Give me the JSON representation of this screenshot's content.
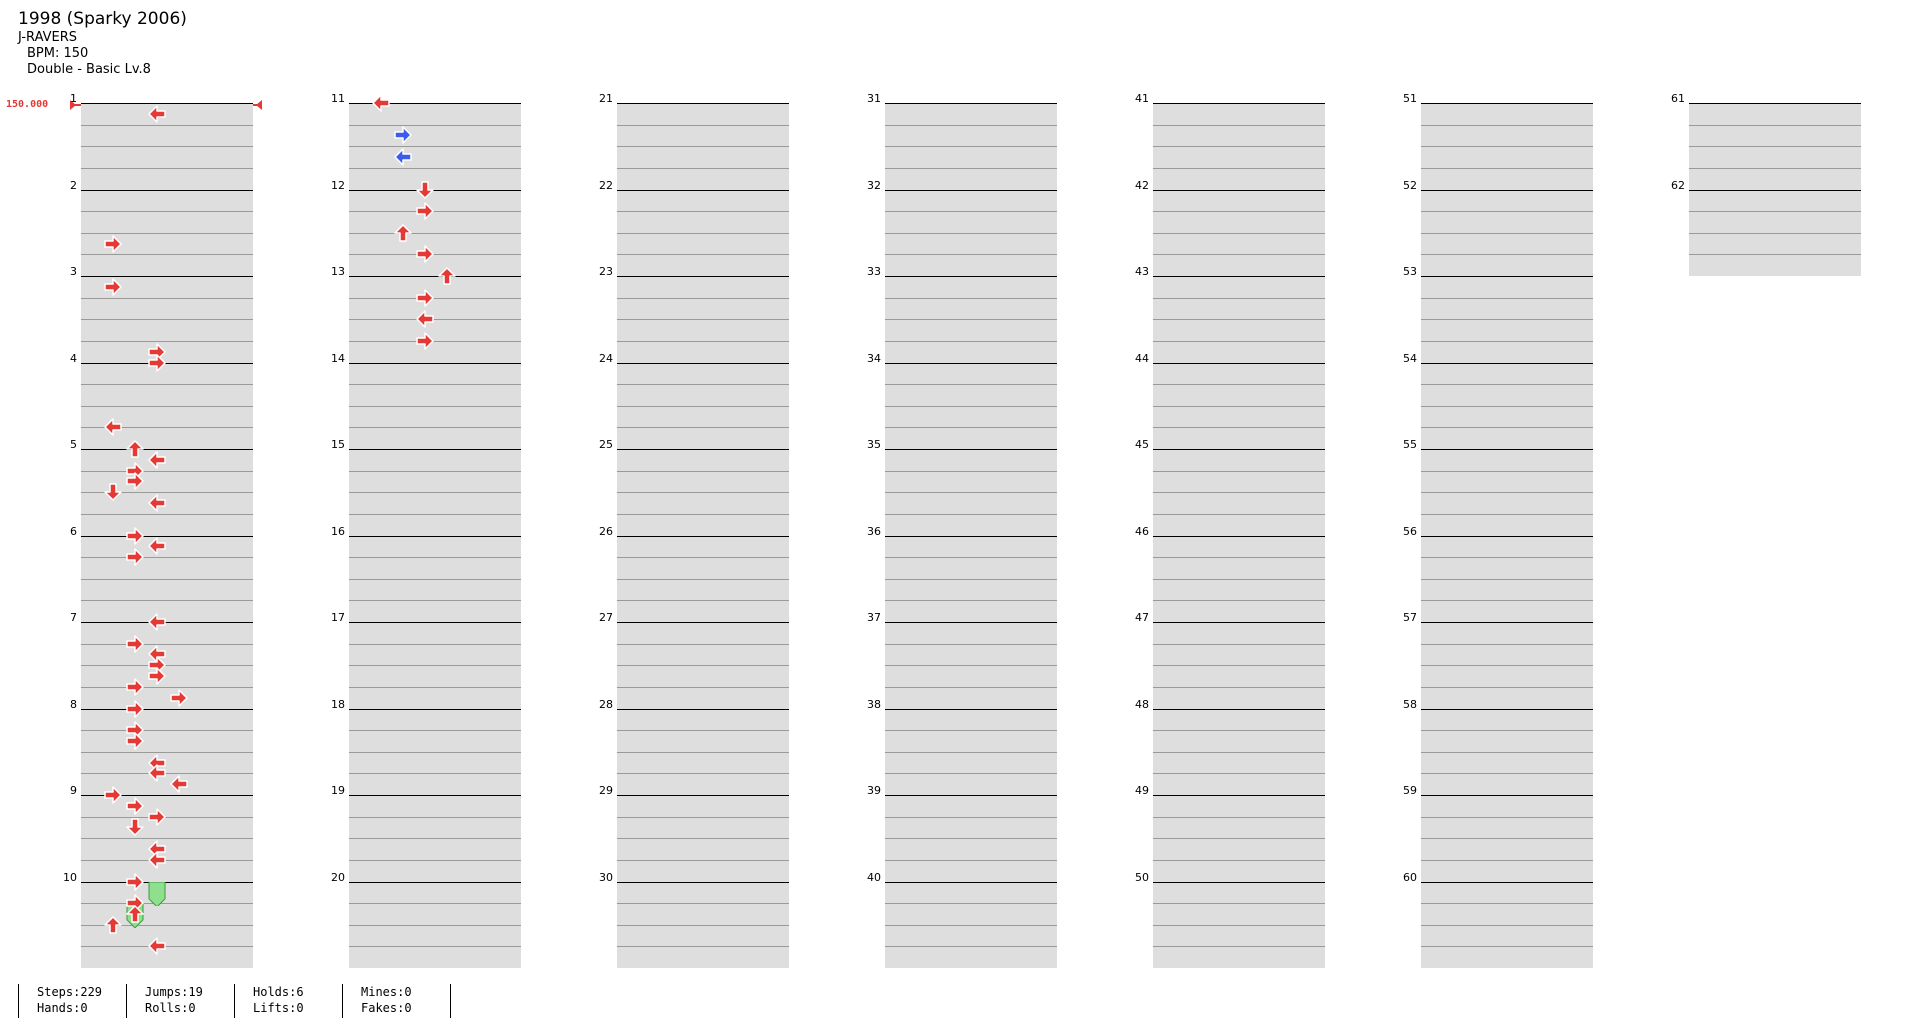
{
  "song": {
    "title": "1998 (Sparky 2006)",
    "artist": "J-RAVERS",
    "bpm_label": "BPM: 150",
    "difficulty_label": "Double - Basic  Lv.8",
    "bpm_marker": "150.000"
  },
  "colors": {
    "left_note": "#e53935",
    "right_note": "#3c5cf0",
    "hold": "#8ee08e",
    "band": "#dedede"
  },
  "measures": {
    "total": 62,
    "per_column": 10,
    "numbers": [
      "1",
      "2",
      "3",
      "4",
      "5",
      "6",
      "7",
      "8",
      "9",
      "10",
      "11",
      "12",
      "13",
      "14",
      "15",
      "16",
      "17",
      "18",
      "19",
      "20",
      "21",
      "22",
      "23",
      "24",
      "25",
      "26",
      "27",
      "28",
      "29",
      "30",
      "31",
      "32",
      "33",
      "34",
      "35",
      "36",
      "37",
      "38",
      "39",
      "40",
      "41",
      "42",
      "43",
      "44",
      "45",
      "46",
      "47",
      "48",
      "49",
      "50",
      "51",
      "52",
      "53",
      "54",
      "55",
      "56",
      "57",
      "58",
      "59",
      "60",
      "61",
      "62"
    ]
  },
  "notes": [
    {
      "m": 1,
      "b": 1,
      "lane": 3,
      "d": "left",
      "s": "red"
    },
    {
      "m": 2,
      "b": 5,
      "lane": 1,
      "d": "right",
      "s": "red"
    },
    {
      "m": 3,
      "b": 1,
      "lane": 1,
      "d": "right",
      "s": "red"
    },
    {
      "m": 3,
      "b": 7,
      "lane": 3,
      "d": "right",
      "s": "red"
    },
    {
      "m": 4,
      "b": 0,
      "lane": 3,
      "d": "right",
      "s": "red"
    },
    {
      "m": 4,
      "b": 6,
      "lane": 1,
      "d": "left",
      "s": "red"
    },
    {
      "m": 5,
      "b": 0,
      "lane": 2,
      "d": "up",
      "s": "red"
    },
    {
      "m": 5,
      "b": 1,
      "lane": 3,
      "d": "left",
      "s": "red"
    },
    {
      "m": 5,
      "b": 2,
      "lane": 2,
      "d": "right",
      "s": "red"
    },
    {
      "m": 5,
      "b": 3,
      "lane": 2,
      "d": "right",
      "s": "red"
    },
    {
      "m": 5,
      "b": 4,
      "lane": 1,
      "d": "down",
      "s": "red"
    },
    {
      "m": 5,
      "b": 5,
      "lane": 3,
      "d": "left",
      "s": "red"
    },
    {
      "m": 6,
      "b": 0,
      "lane": 2,
      "d": "right",
      "s": "red"
    },
    {
      "m": 6,
      "b": 1,
      "lane": 3,
      "d": "left",
      "s": "red"
    },
    {
      "m": 6,
      "b": 2,
      "lane": 2,
      "d": "right",
      "s": "red"
    },
    {
      "m": 7,
      "b": 0,
      "lane": 3,
      "d": "left",
      "s": "red"
    },
    {
      "m": 7,
      "b": 2,
      "lane": 2,
      "d": "right",
      "s": "red"
    },
    {
      "m": 7,
      "b": 3,
      "lane": 3,
      "d": "left",
      "s": "red"
    },
    {
      "m": 7,
      "b": 4,
      "lane": 3,
      "d": "right",
      "s": "red"
    },
    {
      "m": 7,
      "b": 5,
      "lane": 3,
      "d": "right",
      "s": "red"
    },
    {
      "m": 7,
      "b": 6,
      "lane": 2,
      "d": "right",
      "s": "red"
    },
    {
      "m": 7,
      "b": 7,
      "lane": 4,
      "d": "right",
      "s": "red"
    },
    {
      "m": 8,
      "b": 0,
      "lane": 2,
      "d": "right",
      "s": "red"
    },
    {
      "m": 8,
      "b": 2,
      "lane": 2,
      "d": "right",
      "s": "red"
    },
    {
      "m": 8,
      "b": 3,
      "lane": 2,
      "d": "right",
      "s": "red"
    },
    {
      "m": 8,
      "b": 5,
      "lane": 3,
      "d": "left",
      "s": "red"
    },
    {
      "m": 8,
      "b": 6,
      "lane": 3,
      "d": "left",
      "s": "red"
    },
    {
      "m": 8,
      "b": 7,
      "lane": 4,
      "d": "left",
      "s": "red"
    },
    {
      "m": 9,
      "b": 0,
      "lane": 1,
      "d": "right",
      "s": "red"
    },
    {
      "m": 9,
      "b": 1,
      "lane": 2,
      "d": "right",
      "s": "red"
    },
    {
      "m": 9,
      "b": 2,
      "lane": 3,
      "d": "right",
      "s": "red"
    },
    {
      "m": 9,
      "b": 3,
      "lane": 2,
      "d": "down",
      "s": "red"
    },
    {
      "m": 9,
      "b": 5,
      "lane": 3,
      "d": "left",
      "s": "red"
    },
    {
      "m": 9,
      "b": 6,
      "lane": 3,
      "d": "left",
      "s": "red"
    },
    {
      "m": 10,
      "b": 0,
      "lane": 2,
      "d": "right",
      "s": "red"
    },
    {
      "m": 10,
      "b": 2,
      "lane": 2,
      "d": "right",
      "s": "red"
    },
    {
      "m": 10,
      "b": 3,
      "lane": 2,
      "d": "up",
      "s": "red"
    },
    {
      "m": 10,
      "b": 4,
      "lane": 1,
      "d": "up",
      "s": "red"
    },
    {
      "m": 10,
      "b": 6,
      "lane": 3,
      "d": "left",
      "s": "red"
    },
    {
      "m": 11,
      "b": 0,
      "lane": 1,
      "d": "left",
      "s": "red"
    },
    {
      "m": 11,
      "b": 3,
      "lane": 2,
      "d": "right",
      "s": "blue"
    },
    {
      "m": 11,
      "b": 5,
      "lane": 2,
      "d": "left",
      "s": "blue"
    },
    {
      "m": 12,
      "b": 0,
      "lane": 3,
      "d": "down",
      "s": "red"
    },
    {
      "m": 12,
      "b": 2,
      "lane": 3,
      "d": "right",
      "s": "red"
    },
    {
      "m": 12,
      "b": 4,
      "lane": 2,
      "d": "up",
      "s": "red"
    },
    {
      "m": 12,
      "b": 6,
      "lane": 3,
      "d": "right",
      "s": "red"
    },
    {
      "m": 13,
      "b": 0,
      "lane": 4,
      "d": "up",
      "s": "red"
    },
    {
      "m": 13,
      "b": 2,
      "lane": 3,
      "d": "right",
      "s": "red"
    },
    {
      "m": 13,
      "b": 4,
      "lane": 3,
      "d": "left",
      "s": "red"
    },
    {
      "m": 13,
      "b": 6,
      "lane": 3,
      "d": "right",
      "s": "red"
    }
  ],
  "holds": [
    {
      "m": 10,
      "b": 0,
      "end": 1,
      "lane": 3
    },
    {
      "m": 10,
      "b": 2,
      "end": 3,
      "lane": 2
    }
  ],
  "stats": {
    "steps": "Steps:229",
    "hands": "Hands:0",
    "jumps": "Jumps:19",
    "rolls": "Rolls:0",
    "holds": "Holds:6",
    "lifts": "Lifts:0",
    "mines": "Mines:0",
    "fakes": "Fakes:0"
  }
}
